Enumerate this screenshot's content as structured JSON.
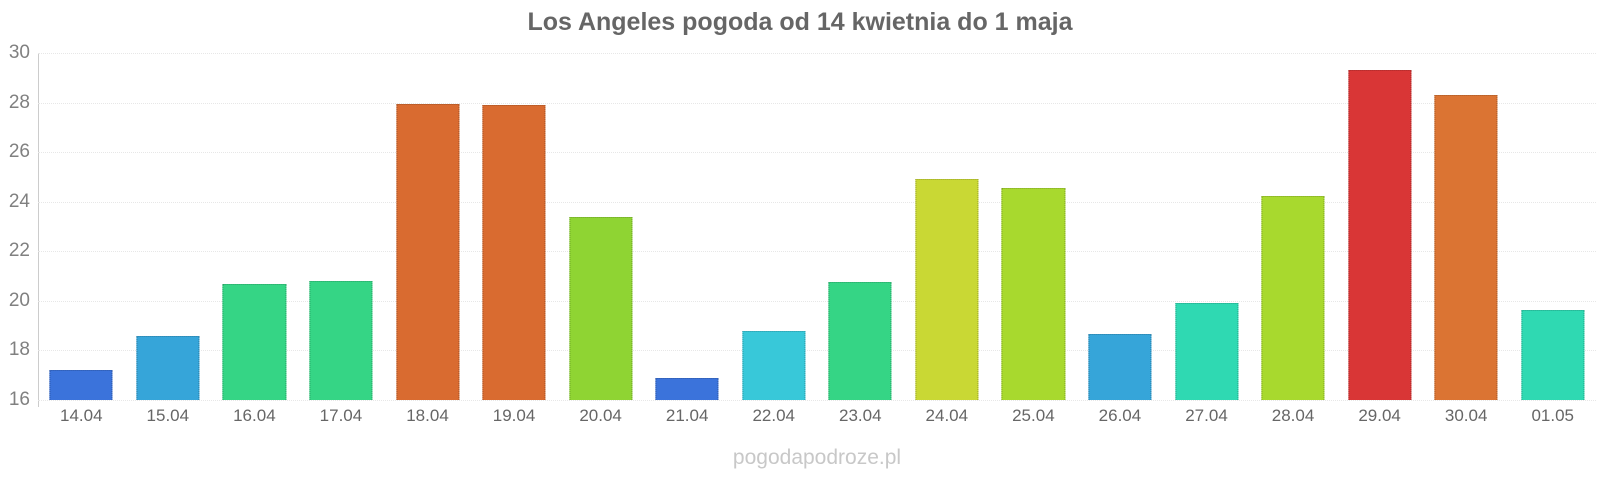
{
  "header": {
    "title": "Los Angeles pogoda od 14 kwietnia do 1 maja"
  },
  "footer": {
    "watermark": "pogodapodroze.pl"
  },
  "colors": {
    "title_text": "#666666",
    "y_tick_text": "#808080",
    "x_tick_text": "#666666",
    "axis_spine": "#cccccc",
    "gridline": "#e7e7e7",
    "watermark_text": "#c8c8c8",
    "background": "#ffffff"
  },
  "chart_data": {
    "type": "bar",
    "title": "Los Angeles pogoda od 14 kwietnia do 1 maja",
    "xlabel": "",
    "ylabel": "",
    "categories": [
      "14.04",
      "15.04",
      "16.04",
      "17.04",
      "18.04",
      "19.04",
      "20.04",
      "21.04",
      "22.04",
      "23.04",
      "24.04",
      "25.04",
      "26.04",
      "27.04",
      "28.04",
      "29.04",
      "30.04",
      "01.05"
    ],
    "values": [
      17.2,
      18.6,
      20.7,
      20.8,
      27.95,
      27.9,
      23.4,
      16.9,
      18.8,
      20.75,
      24.9,
      24.55,
      18.65,
      19.9,
      24.25,
      29.3,
      28.3,
      19.65
    ],
    "bar_colors": [
      "#3B73DB",
      "#36A5D9",
      "#35D585",
      "#35D585",
      "#D96B30",
      "#D96B30",
      "#8FD433",
      "#3B73DB",
      "#38C8D9",
      "#35D585",
      "#C9D834",
      "#A8D92E",
      "#36A5D9",
      "#2FD9B2",
      "#A8D92E",
      "#D93636",
      "#DB7433",
      "#2FD9B2"
    ],
    "ylim": [
      16,
      30
    ],
    "yticks": [
      16,
      18,
      20,
      22,
      24,
      26,
      28,
      30
    ],
    "grid": "horizontal-dotted",
    "legend": "none",
    "watermark": "pogodapodroze.pl"
  }
}
